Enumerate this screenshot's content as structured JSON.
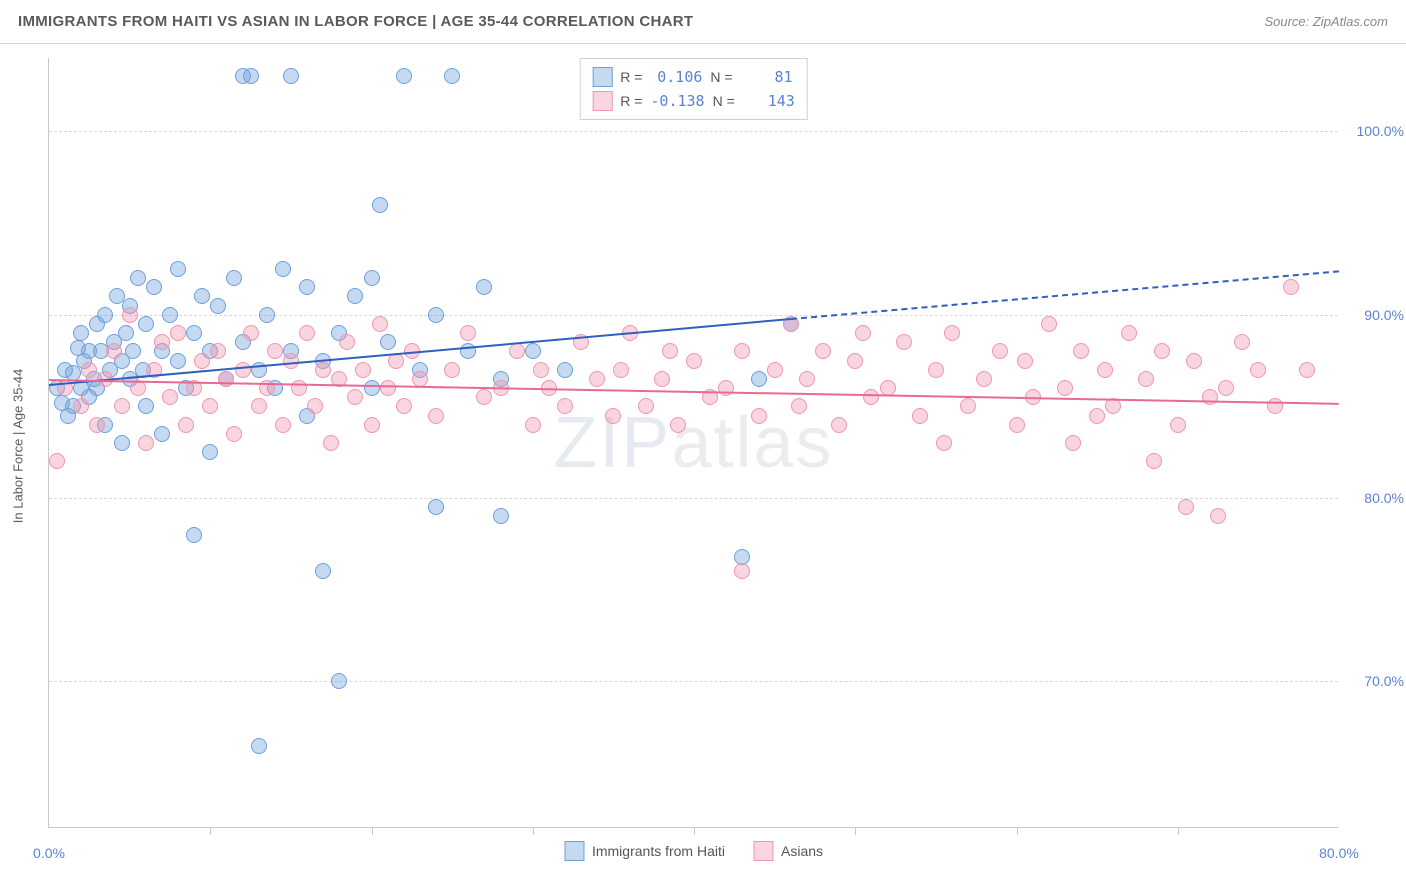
{
  "header": {
    "title": "IMMIGRANTS FROM HAITI VS ASIAN IN LABOR FORCE | AGE 35-44 CORRELATION CHART",
    "source_prefix": "Source: ",
    "source": "ZipAtlas.com"
  },
  "watermark": {
    "part1": "ZIP",
    "part2": "atlas"
  },
  "chart": {
    "type": "scatter",
    "background_color": "#ffffff",
    "grid_color": "#d8d8d8",
    "border_color": "#c8c8c8",
    "ylabel": "In Labor Force | Age 35-44",
    "label_color": "#5a5a5a",
    "label_fontsize": 13,
    "tick_label_color": "#5b82d4",
    "tick_fontsize": 14,
    "xlim": [
      0,
      80
    ],
    "ylim": [
      62,
      104
    ],
    "yticks": [
      {
        "v": 70,
        "label": "70.0%"
      },
      {
        "v": 80,
        "label": "80.0%"
      },
      {
        "v": 90,
        "label": "90.0%"
      },
      {
        "v": 100,
        "label": "100.0%"
      }
    ],
    "xticks_major": [
      0,
      80
    ],
    "xticks_minor": [
      10,
      20,
      30,
      40,
      50,
      60,
      70
    ],
    "xtick_labels": [
      {
        "v": 0,
        "label": "0.0%"
      },
      {
        "v": 80,
        "label": "80.0%"
      }
    ],
    "marker_radius": 8,
    "marker_opacity": 0.45,
    "series": [
      {
        "name": "Immigrants from Haiti",
        "color_fill": "rgba(110,160,220,0.40)",
        "color_stroke": "#6ea0dc",
        "R": "0.106",
        "N": "81",
        "trend": {
          "x1": 0,
          "y1": 86.2,
          "x2": 46,
          "y2": 89.8,
          "dash_to_x": 80,
          "dash_to_y": 92.4,
          "color": "#2f5fc0",
          "width": 2
        },
        "points": [
          [
            0.5,
            86.0
          ],
          [
            0.8,
            85.2
          ],
          [
            1.0,
            87.0
          ],
          [
            1.2,
            84.5
          ],
          [
            1.5,
            86.8
          ],
          [
            1.5,
            85.0
          ],
          [
            1.8,
            88.2
          ],
          [
            2.0,
            86.0
          ],
          [
            2.0,
            89.0
          ],
          [
            2.2,
            87.5
          ],
          [
            2.5,
            85.5
          ],
          [
            2.5,
            88.0
          ],
          [
            2.8,
            86.5
          ],
          [
            3.0,
            89.5
          ],
          [
            3.0,
            86.0
          ],
          [
            3.2,
            88.0
          ],
          [
            3.5,
            90.0
          ],
          [
            3.5,
            84.0
          ],
          [
            3.8,
            87.0
          ],
          [
            4.0,
            88.5
          ],
          [
            4.2,
            91.0
          ],
          [
            4.5,
            87.5
          ],
          [
            4.5,
            83.0
          ],
          [
            4.8,
            89.0
          ],
          [
            5.0,
            90.5
          ],
          [
            5.0,
            86.5
          ],
          [
            5.2,
            88.0
          ],
          [
            5.5,
            92.0
          ],
          [
            5.8,
            87.0
          ],
          [
            6.0,
            89.5
          ],
          [
            6.0,
            85.0
          ],
          [
            6.5,
            91.5
          ],
          [
            7.0,
            88.0
          ],
          [
            7.0,
            83.5
          ],
          [
            7.5,
            90.0
          ],
          [
            8.0,
            87.5
          ],
          [
            8.0,
            92.5
          ],
          [
            8.5,
            86.0
          ],
          [
            9.0,
            89.0
          ],
          [
            9.0,
            78.0
          ],
          [
            9.5,
            91.0
          ],
          [
            10.0,
            88.0
          ],
          [
            10.0,
            82.5
          ],
          [
            10.5,
            90.5
          ],
          [
            11.0,
            86.5
          ],
          [
            11.5,
            92.0
          ],
          [
            12.0,
            88.5
          ],
          [
            12.0,
            103.0
          ],
          [
            12.5,
            103.0
          ],
          [
            13.0,
            87.0
          ],
          [
            13.0,
            66.5
          ],
          [
            13.5,
            90.0
          ],
          [
            14.0,
            86.0
          ],
          [
            14.5,
            92.5
          ],
          [
            15.0,
            88.0
          ],
          [
            15.0,
            103.0
          ],
          [
            16.0,
            84.5
          ],
          [
            16.0,
            91.5
          ],
          [
            17.0,
            87.5
          ],
          [
            17.0,
            76.0
          ],
          [
            18.0,
            89.0
          ],
          [
            18.0,
            70.0
          ],
          [
            19.0,
            91.0
          ],
          [
            20.0,
            92.0
          ],
          [
            20.0,
            86.0
          ],
          [
            20.5,
            96.0
          ],
          [
            21.0,
            88.5
          ],
          [
            22.0,
            103.0
          ],
          [
            23.0,
            87.0
          ],
          [
            24.0,
            90.0
          ],
          [
            24.0,
            79.5
          ],
          [
            25.0,
            103.0
          ],
          [
            26.0,
            88.0
          ],
          [
            27.0,
            91.5
          ],
          [
            28.0,
            86.5
          ],
          [
            28.0,
            79.0
          ],
          [
            30.0,
            88.0
          ],
          [
            32.0,
            87.0
          ],
          [
            43.0,
            76.8
          ],
          [
            44.0,
            86.5
          ],
          [
            46.0,
            89.5
          ]
        ]
      },
      {
        "name": "Asians",
        "color_fill": "rgba(240,150,175,0.40)",
        "color_stroke": "#f096af",
        "R": "-0.138",
        "N": "143",
        "trend": {
          "x1": 0,
          "y1": 86.5,
          "x2": 80,
          "y2": 85.2,
          "color": "#e86a94",
          "width": 2
        },
        "points": [
          [
            0.5,
            82.0
          ],
          [
            1.0,
            86.0
          ],
          [
            2.0,
            85.0
          ],
          [
            2.5,
            87.0
          ],
          [
            3.0,
            84.0
          ],
          [
            3.5,
            86.5
          ],
          [
            4.0,
            88.0
          ],
          [
            4.5,
            85.0
          ],
          [
            5.0,
            90.0
          ],
          [
            5.5,
            86.0
          ],
          [
            6.0,
            83.0
          ],
          [
            6.5,
            87.0
          ],
          [
            7.0,
            88.5
          ],
          [
            7.5,
            85.5
          ],
          [
            8.0,
            89.0
          ],
          [
            8.5,
            84.0
          ],
          [
            9.0,
            86.0
          ],
          [
            9.5,
            87.5
          ],
          [
            10.0,
            85.0
          ],
          [
            10.5,
            88.0
          ],
          [
            11.0,
            86.5
          ],
          [
            11.5,
            83.5
          ],
          [
            12.0,
            87.0
          ],
          [
            12.5,
            89.0
          ],
          [
            13.0,
            85.0
          ],
          [
            13.5,
            86.0
          ],
          [
            14.0,
            88.0
          ],
          [
            14.5,
            84.0
          ],
          [
            15.0,
            87.5
          ],
          [
            15.5,
            86.0
          ],
          [
            16.0,
            89.0
          ],
          [
            16.5,
            85.0
          ],
          [
            17.0,
            87.0
          ],
          [
            17.5,
            83.0
          ],
          [
            18.0,
            86.5
          ],
          [
            18.5,
            88.5
          ],
          [
            19.0,
            85.5
          ],
          [
            19.5,
            87.0
          ],
          [
            20.0,
            84.0
          ],
          [
            20.5,
            89.5
          ],
          [
            21.0,
            86.0
          ],
          [
            21.5,
            87.5
          ],
          [
            22.0,
            85.0
          ],
          [
            22.5,
            88.0
          ],
          [
            23.0,
            86.5
          ],
          [
            24.0,
            84.5
          ],
          [
            25.0,
            87.0
          ],
          [
            26.0,
            89.0
          ],
          [
            27.0,
            85.5
          ],
          [
            28.0,
            86.0
          ],
          [
            29.0,
            88.0
          ],
          [
            30.0,
            84.0
          ],
          [
            30.5,
            87.0
          ],
          [
            31.0,
            86.0
          ],
          [
            32.0,
            85.0
          ],
          [
            33.0,
            88.5
          ],
          [
            34.0,
            86.5
          ],
          [
            35.0,
            84.5
          ],
          [
            35.5,
            87.0
          ],
          [
            36.0,
            89.0
          ],
          [
            37.0,
            85.0
          ],
          [
            38.0,
            86.5
          ],
          [
            38.5,
            88.0
          ],
          [
            39.0,
            84.0
          ],
          [
            40.0,
            87.5
          ],
          [
            41.0,
            85.5
          ],
          [
            42.0,
            86.0
          ],
          [
            43.0,
            88.0
          ],
          [
            43.0,
            76.0
          ],
          [
            44.0,
            84.5
          ],
          [
            45.0,
            87.0
          ],
          [
            46.0,
            89.5
          ],
          [
            46.5,
            85.0
          ],
          [
            47.0,
            86.5
          ],
          [
            48.0,
            88.0
          ],
          [
            49.0,
            84.0
          ],
          [
            50.0,
            87.5
          ],
          [
            50.5,
            89.0
          ],
          [
            51.0,
            85.5
          ],
          [
            52.0,
            86.0
          ],
          [
            53.0,
            88.5
          ],
          [
            54.0,
            84.5
          ],
          [
            55.0,
            87.0
          ],
          [
            55.5,
            83.0
          ],
          [
            56.0,
            89.0
          ],
          [
            57.0,
            85.0
          ],
          [
            58.0,
            86.5
          ],
          [
            59.0,
            88.0
          ],
          [
            60.0,
            84.0
          ],
          [
            60.5,
            87.5
          ],
          [
            61.0,
            85.5
          ],
          [
            62.0,
            89.5
          ],
          [
            63.0,
            86.0
          ],
          [
            63.5,
            83.0
          ],
          [
            64.0,
            88.0
          ],
          [
            65.0,
            84.5
          ],
          [
            65.5,
            87.0
          ],
          [
            66.0,
            85.0
          ],
          [
            67.0,
            89.0
          ],
          [
            68.0,
            86.5
          ],
          [
            68.5,
            82.0
          ],
          [
            69.0,
            88.0
          ],
          [
            70.0,
            84.0
          ],
          [
            70.5,
            79.5
          ],
          [
            71.0,
            87.5
          ],
          [
            72.0,
            85.5
          ],
          [
            72.5,
            79.0
          ],
          [
            73.0,
            86.0
          ],
          [
            74.0,
            88.5
          ],
          [
            75.0,
            87.0
          ],
          [
            76.0,
            85.0
          ],
          [
            77.0,
            91.5
          ],
          [
            78.0,
            87.0
          ]
        ]
      }
    ],
    "legend_top": {
      "r_label": "R =",
      "n_label": "N ="
    }
  }
}
